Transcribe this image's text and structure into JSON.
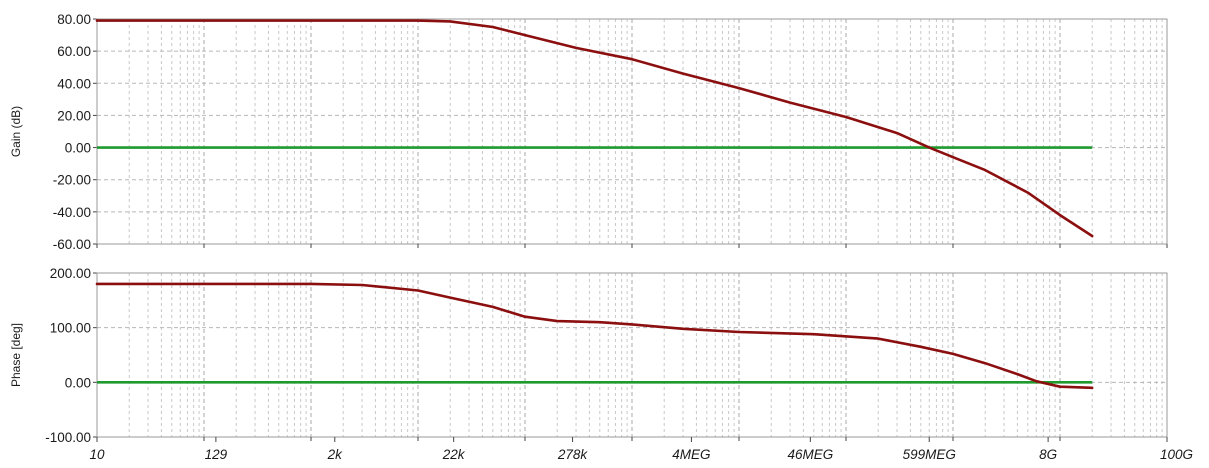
{
  "chart_data": [
    {
      "type": "line",
      "ylabel": "Gain (dB)",
      "xscale": "log",
      "xlim": [
        10,
        100000000000
      ],
      "ylim": [
        -60,
        80
      ],
      "yticks": [
        "80.00",
        "60.00",
        "40.00",
        "20.00",
        "0.00",
        "-20.00",
        "-40.00",
        "-60.00"
      ],
      "grid": true,
      "colors": {
        "curve": "#8b0f0f",
        "reference": "#1f9a2f"
      },
      "series": [
        {
          "x": [
            10,
            1000,
            10000,
            20000,
            50000,
            100000,
            300000,
            1000000,
            3000000,
            10000000,
            30000000,
            100000000,
            300000000,
            600000000,
            1000000000,
            2000000000,
            5000000000,
            10000000000,
            20000000000
          ],
          "values": [
            79,
            79,
            79,
            78.5,
            75,
            70,
            62,
            55,
            46,
            37,
            28,
            19,
            9,
            0,
            -6,
            -14,
            -28,
            -42,
            -55
          ]
        },
        {
          "x": [
            10,
            20000000000
          ],
          "values": [
            0,
            0
          ]
        }
      ]
    },
    {
      "type": "line",
      "ylabel": "Phase [deg]",
      "xlabel": "",
      "xscale": "log",
      "xlim": [
        10,
        100000000000
      ],
      "ylim": [
        -100,
        200
      ],
      "yticks": [
        "200.00",
        "100.00",
        "0.00",
        "-100.00"
      ],
      "xticks": [
        "10",
        "129",
        "2k",
        "22k",
        "278k",
        "4MEG",
        "46MEG",
        "599MEG",
        "8G",
        "100G"
      ],
      "grid": true,
      "colors": {
        "curve": "#8b0f0f",
        "reference": "#1f9a2f"
      },
      "series": [
        {
          "x": [
            10,
            1000,
            3000,
            10000,
            20000,
            50000,
            100000,
            200000,
            500000,
            1000000,
            3000000,
            10000000,
            50000000,
            200000000,
            500000000,
            1000000000,
            2000000000,
            4000000000,
            6000000000,
            10000000000,
            20000000000
          ],
          "values": [
            180,
            180,
            178,
            168,
            155,
            138,
            120,
            112,
            110,
            106,
            98,
            92,
            88,
            80,
            65,
            52,
            35,
            15,
            2,
            -8,
            -10
          ]
        },
        {
          "x": [
            10,
            20000000000
          ],
          "values": [
            0,
            0
          ]
        }
      ]
    }
  ]
}
